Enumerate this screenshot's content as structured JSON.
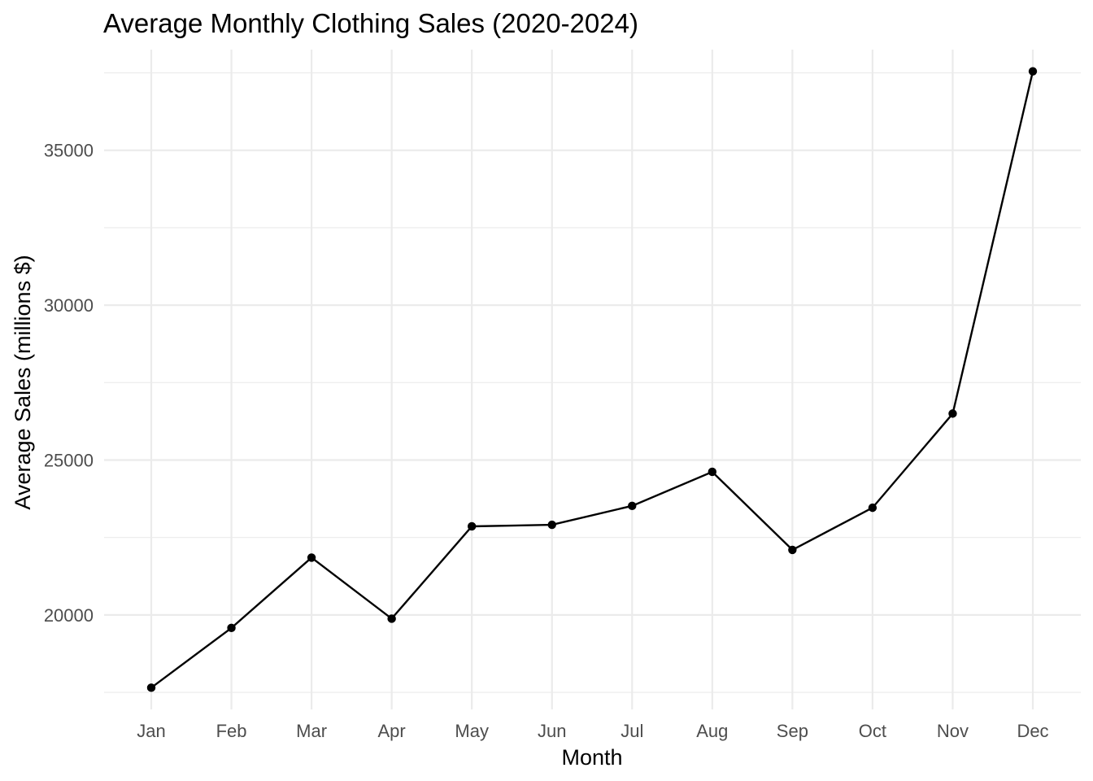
{
  "chart_data": {
    "type": "line",
    "title": "Average Monthly Clothing Sales (2020-2024)",
    "xlabel": "Month",
    "ylabel": "Average Sales (millions $)",
    "categories": [
      "Jan",
      "Feb",
      "Mar",
      "Apr",
      "May",
      "Jun",
      "Jul",
      "Aug",
      "Sep",
      "Oct",
      "Nov",
      "Dec"
    ],
    "values": [
      17650,
      19580,
      21850,
      19880,
      22860,
      22910,
      23520,
      24620,
      22100,
      23460,
      26500,
      37550
    ],
    "ylim": [
      16950,
      38250
    ],
    "y_major_ticks": [
      20000,
      25000,
      30000,
      35000
    ],
    "y_tick_labels": [
      "20000",
      "25000",
      "30000",
      "35000"
    ],
    "y_minor_ticks": [
      17500,
      22500,
      27500,
      32500,
      37500
    ],
    "grid": true,
    "legend": "none",
    "line_color": "#000000",
    "grid_color": "#ebebeb"
  }
}
